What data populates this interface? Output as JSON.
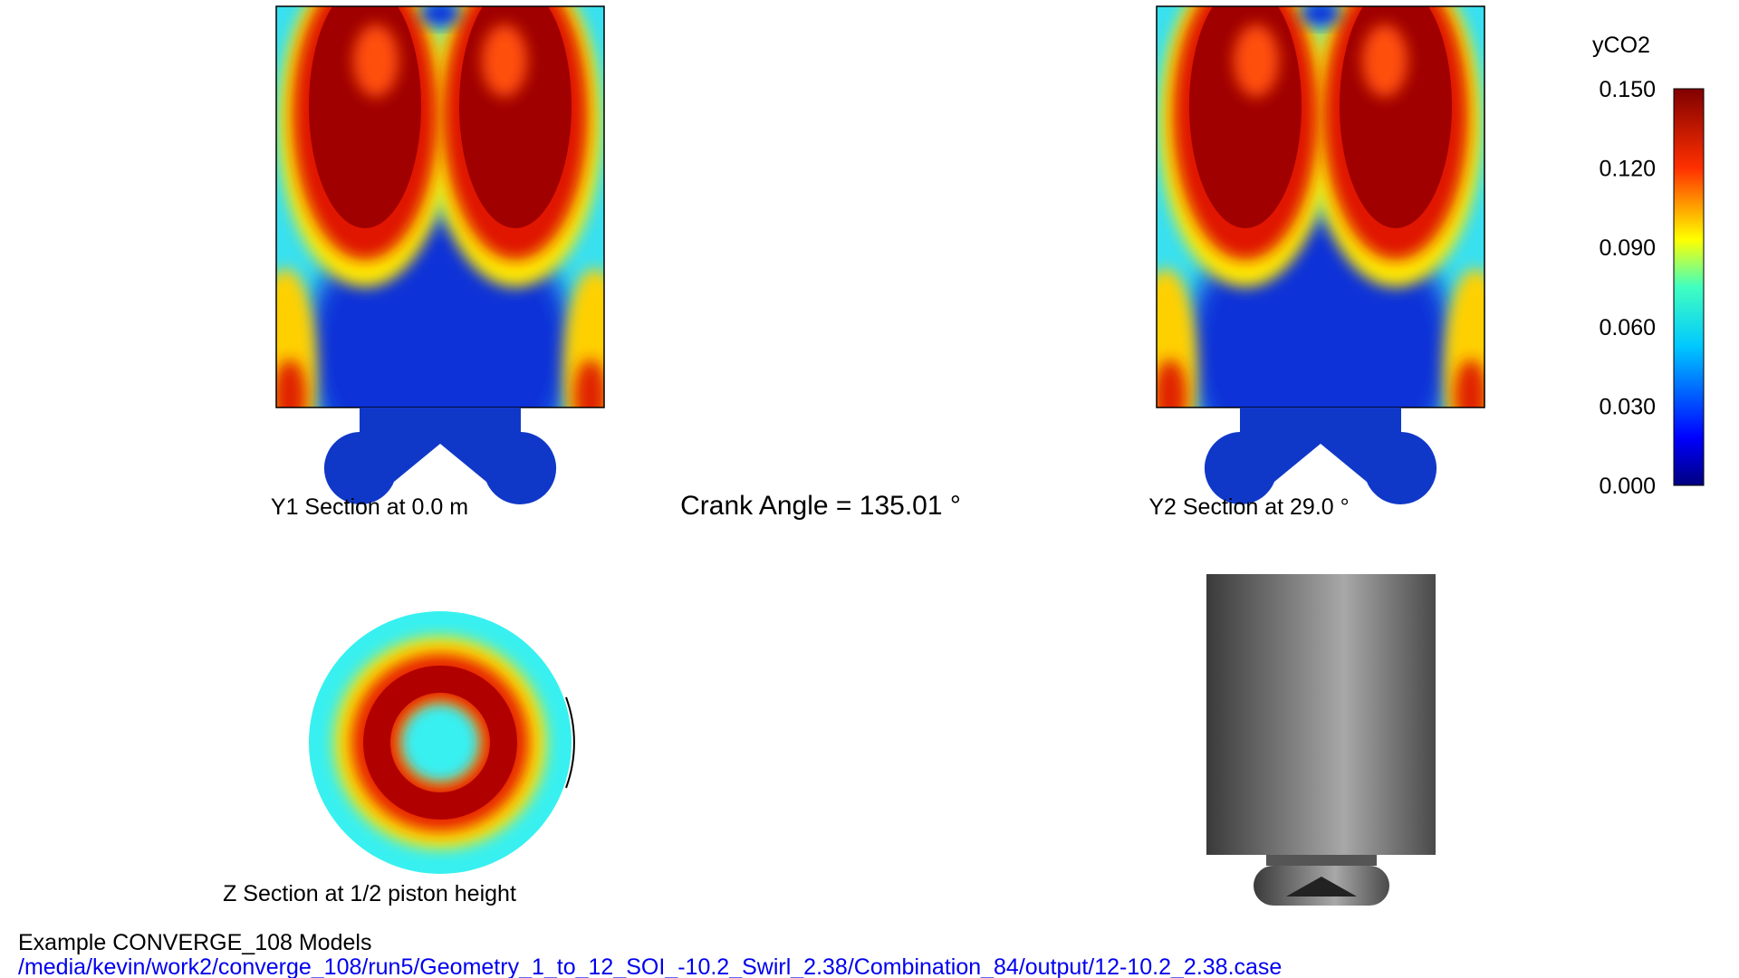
{
  "colorbar": {
    "title": "yCO2",
    "ticks": [
      "0.150",
      "0.120",
      "0.090",
      "0.060",
      "0.030",
      "0.000"
    ]
  },
  "panels": {
    "y1_caption": "Y1 Section at 0.0 m",
    "y2_caption": "Y2 Section at 29.0 °",
    "z_caption": "Z Section at 1/2 piston height"
  },
  "crank_angle": "Crank Angle = 135.01 °",
  "footer": {
    "title": "Example CONVERGE_108 Models",
    "path": "/media/kevin/work2/converge_108/run5/Geometry_1_to_12_SOI_-10.2_Swirl_2.38/Combination_84/output/12-10.2_2.38.case"
  }
}
